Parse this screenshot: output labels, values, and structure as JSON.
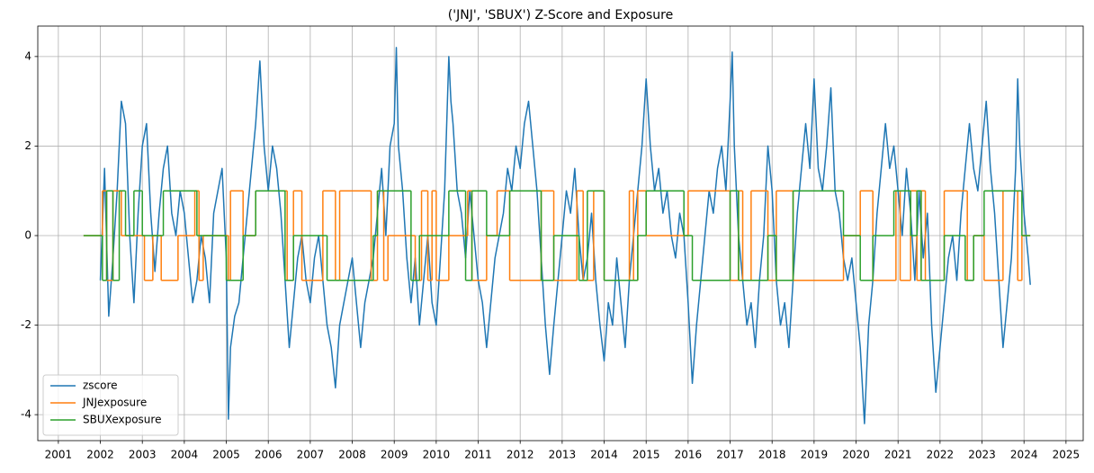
{
  "chart_data": {
    "type": "line",
    "title": "('JNJ', 'SBUX') Z-Score and Exposure",
    "xlim": [
      2000.51,
      2025.41
    ],
    "ylim": [
      -4.58,
      4.68
    ],
    "xticks": [
      2001,
      2002,
      2003,
      2004,
      2005,
      2006,
      2007,
      2008,
      2009,
      2010,
      2011,
      2012,
      2013,
      2014,
      2015,
      2016,
      2017,
      2018,
      2019,
      2020,
      2021,
      2022,
      2023,
      2024,
      2025
    ],
    "yticks": [
      -4,
      -2,
      0,
      2,
      4
    ],
    "grid": true,
    "legend": "lower left",
    "series": [
      {
        "name": "zscore",
        "color": "#1f77b4",
        "drawstyle": "default",
        "x": [
          2002.0,
          2002.1,
          2002.2,
          2002.3,
          2002.4,
          2002.5,
          2002.6,
          2002.7,
          2002.8,
          2002.9,
          2003.0,
          2003.1,
          2003.2,
          2003.3,
          2003.4,
          2003.5,
          2003.6,
          2003.7,
          2003.8,
          2003.9,
          2004.0,
          2004.1,
          2004.2,
          2004.3,
          2004.4,
          2004.5,
          2004.6,
          2004.7,
          2004.8,
          2004.9,
          2005.0,
          2005.05,
          2005.1,
          2005.2,
          2005.3,
          2005.4,
          2005.5,
          2005.6,
          2005.7,
          2005.8,
          2005.9,
          2006.0,
          2006.1,
          2006.2,
          2006.3,
          2006.4,
          2006.5,
          2006.6,
          2006.7,
          2006.8,
          2006.9,
          2007.0,
          2007.1,
          2007.2,
          2007.3,
          2007.4,
          2007.5,
          2007.6,
          2007.7,
          2007.8,
          2007.9,
          2008.0,
          2008.1,
          2008.2,
          2008.3,
          2008.4,
          2008.5,
          2008.6,
          2008.7,
          2008.8,
          2008.9,
          2009.0,
          2009.05,
          2009.1,
          2009.2,
          2009.3,
          2009.4,
          2009.5,
          2009.6,
          2009.7,
          2009.8,
          2009.9,
          2010.0,
          2010.1,
          2010.2,
          2010.3,
          2010.35,
          2010.4,
          2010.5,
          2010.6,
          2010.7,
          2010.8,
          2010.9,
          2011.0,
          2011.1,
          2011.2,
          2011.3,
          2011.4,
          2011.5,
          2011.6,
          2011.7,
          2011.8,
          2011.9,
          2012.0,
          2012.1,
          2012.2,
          2012.3,
          2012.4,
          2012.5,
          2012.6,
          2012.7,
          2012.8,
          2012.9,
          2013.0,
          2013.1,
          2013.2,
          2013.3,
          2013.4,
          2013.5,
          2013.6,
          2013.7,
          2013.8,
          2013.9,
          2014.0,
          2014.1,
          2014.2,
          2014.3,
          2014.4,
          2014.5,
          2014.6,
          2014.7,
          2014.8,
          2014.9,
          2015.0,
          2015.1,
          2015.2,
          2015.3,
          2015.4,
          2015.5,
          2015.6,
          2015.7,
          2015.8,
          2015.9,
          2016.0,
          2016.1,
          2016.2,
          2016.3,
          2016.4,
          2016.5,
          2016.6,
          2016.7,
          2016.8,
          2016.9,
          2017.0,
          2017.05,
          2017.1,
          2017.2,
          2017.3,
          2017.4,
          2017.5,
          2017.6,
          2017.7,
          2017.8,
          2017.9,
          2018.0,
          2018.1,
          2018.2,
          2018.3,
          2018.4,
          2018.5,
          2018.6,
          2018.7,
          2018.8,
          2018.9,
          2019.0,
          2019.1,
          2019.2,
          2019.3,
          2019.4,
          2019.5,
          2019.6,
          2019.7,
          2019.8,
          2019.9,
          2020.0,
          2020.1,
          2020.2,
          2020.3,
          2020.4,
          2020.5,
          2020.6,
          2020.7,
          2020.8,
          2020.9,
          2021.0,
          2021.1,
          2021.2,
          2021.3,
          2021.4,
          2021.5,
          2021.6,
          2021.7,
          2021.8,
          2021.9,
          2022.0,
          2022.1,
          2022.2,
          2022.3,
          2022.4,
          2022.5,
          2022.6,
          2022.7,
          2022.8,
          2022.9,
          2023.0,
          2023.1,
          2023.2,
          2023.3,
          2023.4,
          2023.5,
          2023.6,
          2023.7,
          2023.8,
          2023.85,
          2023.9,
          2024.0,
          2024.1,
          2024.15
        ],
        "values": [
          -1.0,
          1.5,
          -1.8,
          -0.5,
          1.0,
          3.0,
          2.5,
          0.0,
          -1.5,
          0.5,
          2.0,
          2.5,
          0.5,
          -0.8,
          0.5,
          1.5,
          2.0,
          0.5,
          0.0,
          1.0,
          0.5,
          -0.5,
          -1.5,
          -1.0,
          0.0,
          -0.5,
          -1.5,
          0.5,
          1.0,
          1.5,
          -0.5,
          -4.1,
          -2.5,
          -1.8,
          -1.5,
          -0.5,
          0.5,
          1.5,
          2.5,
          3.9,
          2.0,
          1.0,
          2.0,
          1.5,
          0.5,
          -1.0,
          -2.5,
          -1.5,
          -0.5,
          0.0,
          -1.0,
          -1.5,
          -0.5,
          0.0,
          -1.0,
          -2.0,
          -2.5,
          -3.4,
          -2.0,
          -1.5,
          -1.0,
          -0.5,
          -1.5,
          -2.5,
          -1.5,
          -1.0,
          -0.5,
          0.5,
          1.5,
          0.0,
          2.0,
          2.5,
          4.2,
          2.0,
          1.0,
          -0.5,
          -1.5,
          -0.5,
          -2.0,
          -1.0,
          0.0,
          -1.5,
          -2.0,
          -0.5,
          1.0,
          4.0,
          3.0,
          2.5,
          1.0,
          0.5,
          -0.5,
          1.0,
          0.0,
          -1.0,
          -1.5,
          -2.5,
          -1.5,
          -0.5,
          0.0,
          0.5,
          1.5,
          1.0,
          2.0,
          1.5,
          2.5,
          3.0,
          2.0,
          1.0,
          -0.5,
          -2.0,
          -3.1,
          -2.0,
          -1.0,
          0.0,
          1.0,
          0.5,
          1.5,
          0.0,
          -1.0,
          -0.5,
          0.5,
          -1.0,
          -2.0,
          -2.8,
          -1.5,
          -2.0,
          -0.5,
          -1.5,
          -2.5,
          -1.0,
          0.0,
          1.0,
          2.0,
          3.5,
          2.0,
          1.0,
          1.5,
          0.5,
          1.0,
          0.0,
          -0.5,
          0.5,
          0.0,
          -1.5,
          -3.3,
          -2.0,
          -1.0,
          0.0,
          1.0,
          0.5,
          1.5,
          2.0,
          1.0,
          3.0,
          4.1,
          2.0,
          0.0,
          -1.0,
          -2.0,
          -1.5,
          -2.5,
          -1.0,
          0.0,
          2.0,
          1.0,
          -1.0,
          -2.0,
          -1.5,
          -2.5,
          -1.0,
          0.5,
          1.5,
          2.5,
          1.5,
          3.5,
          1.5,
          1.0,
          2.0,
          3.3,
          1.0,
          0.5,
          -0.5,
          -1.0,
          -0.5,
          -1.5,
          -2.5,
          -4.2,
          -2.0,
          -1.0,
          0.5,
          1.5,
          2.5,
          1.5,
          2.0,
          1.0,
          0.0,
          1.5,
          0.5,
          -1.0,
          1.0,
          -0.5,
          0.5,
          -2.0,
          -3.5,
          -2.5,
          -1.5,
          -0.5,
          0.0,
          -1.0,
          0.5,
          1.5,
          2.5,
          1.5,
          1.0,
          2.0,
          3.0,
          1.5,
          0.5,
          -1.0,
          -2.5,
          -1.5,
          -0.5,
          1.5,
          3.5,
          2.0,
          0.5,
          -0.5,
          -1.1
        ]
      },
      {
        "name": "JNJexposure",
        "color": "#ff7f0e",
        "drawstyle": "steps-post",
        "x": [
          2001.6,
          2002.05,
          2002.15,
          2002.3,
          2002.5,
          2003.05,
          2003.25,
          2003.45,
          2003.85,
          2004.25,
          2004.35,
          2004.45,
          2005.05,
          2005.1,
          2005.4,
          2005.7,
          2006.45,
          2006.6,
          2006.8,
          2007.3,
          2007.6,
          2007.7,
          2008.45,
          2008.6,
          2008.75,
          2008.85,
          2009.5,
          2009.65,
          2009.8,
          2009.9,
          2010.0,
          2010.3,
          2010.75,
          2010.85,
          2011.2,
          2011.45,
          2011.75,
          2012.5,
          2012.8,
          2013.35,
          2013.5,
          2013.75,
          2014.0,
          2014.6,
          2014.7,
          2014.8,
          2015.0,
          2016.0,
          2017.0,
          2017.2,
          2017.3,
          2017.5,
          2017.9,
          2018.1,
          2018.5,
          2019.7,
          2020.1,
          2020.4,
          2020.95,
          2021.05,
          2021.3,
          2021.45,
          2021.55,
          2021.65,
          2022.1,
          2022.65,
          2022.8,
          2023.05,
          2023.5,
          2023.85,
          2023.95,
          2024.15
        ],
        "values": [
          0,
          1,
          -1,
          1,
          0,
          -1,
          0,
          -1,
          0,
          1,
          -1,
          0,
          -1,
          1,
          0,
          1,
          -1,
          1,
          -1,
          1,
          -1,
          1,
          -1,
          1,
          -1,
          0,
          -1,
          1,
          -1,
          1,
          -1,
          0,
          1,
          -1,
          0,
          1,
          -1,
          1,
          -1,
          1,
          -1,
          1,
          -1,
          1,
          -1,
          1,
          0,
          1,
          -1,
          1,
          -1,
          1,
          -1,
          1,
          -1,
          0,
          1,
          -1,
          1,
          -1,
          1,
          -1,
          1,
          -1,
          1,
          -1,
          0,
          -1,
          1,
          -1,
          0,
          0
        ]
      },
      {
        "name": "SBUXexposure",
        "color": "#2ca02c",
        "drawstyle": "steps-post",
        "x": [
          2001.6,
          2002.05,
          2002.15,
          2002.3,
          2002.45,
          2002.6,
          2002.8,
          2003.0,
          2003.5,
          2004.3,
          2005.0,
          2005.4,
          2005.7,
          2006.4,
          2006.6,
          2007.4,
          2008.5,
          2008.6,
          2009.4,
          2009.6,
          2010.3,
          2010.7,
          2010.85,
          2011.2,
          2011.75,
          2012.5,
          2012.8,
          2013.4,
          2013.6,
          2014.0,
          2014.8,
          2015.0,
          2015.9,
          2016.1,
          2017.0,
          2017.2,
          2017.9,
          2018.1,
          2018.5,
          2019.7,
          2020.1,
          2020.4,
          2020.9,
          2021.3,
          2021.45,
          2021.55,
          2022.1,
          2022.6,
          2022.8,
          2023.05,
          2023.95,
          2024.15
        ],
        "values": [
          0,
          -1,
          1,
          -1,
          1,
          0,
          1,
          0,
          1,
          0,
          -1,
          0,
          1,
          -1,
          0,
          -1,
          0,
          1,
          -1,
          0,
          1,
          -1,
          1,
          0,
          1,
          -1,
          0,
          -1,
          1,
          -1,
          0,
          1,
          0,
          -1,
          1,
          -1,
          0,
          -1,
          1,
          0,
          -1,
          0,
          1,
          0,
          1,
          -1,
          0,
          -1,
          0,
          1,
          0,
          0
        ]
      }
    ]
  }
}
